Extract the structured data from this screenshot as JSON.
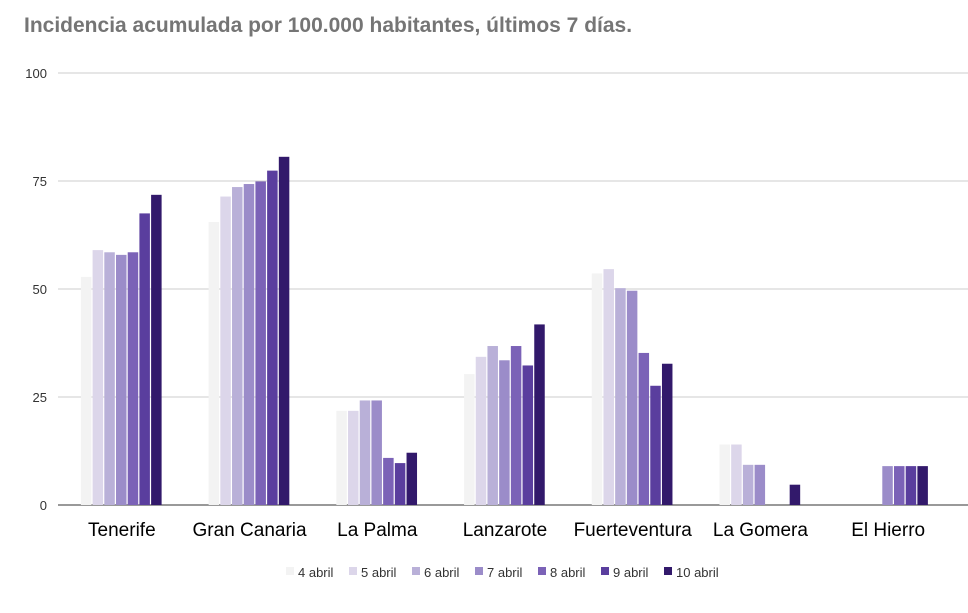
{
  "chart_data": {
    "type": "bar",
    "title": "Incidencia acumulada por 100.000 habitantes, últimos 7 días.",
    "xlabel": "",
    "ylabel": "",
    "ylim": [
      0,
      100
    ],
    "yticks": [
      0,
      25,
      50,
      75,
      100
    ],
    "grid": true,
    "legend_position": "bottom",
    "categories": [
      "Tenerife",
      "Gran Canaria",
      "La Palma",
      "Lanzarote",
      "Fuerteventura",
      "La Gomera",
      "El Hierro"
    ],
    "series": [
      {
        "name": "4 abril",
        "color": "#f3f3f3",
        "values": [
          52.8,
          65.5,
          21.8,
          30.3,
          53.6,
          14.0,
          0
        ]
      },
      {
        "name": "5 abril",
        "color": "#dcd6ea",
        "values": [
          59.0,
          71.4,
          21.8,
          34.3,
          54.6,
          14.0,
          0
        ]
      },
      {
        "name": "6 abril",
        "color": "#b9b0d8",
        "values": [
          58.5,
          73.6,
          24.2,
          36.8,
          50.2,
          9.3,
          0
        ]
      },
      {
        "name": "7 abril",
        "color": "#9b8cc9",
        "values": [
          57.9,
          74.3,
          24.2,
          33.5,
          49.6,
          9.3,
          9.0
        ]
      },
      {
        "name": "8 abril",
        "color": "#7b62b7",
        "values": [
          58.5,
          74.9,
          10.9,
          36.8,
          35.2,
          0,
          9.0
        ]
      },
      {
        "name": "9 abril",
        "color": "#5a3e9e",
        "values": [
          67.5,
          77.4,
          9.7,
          32.3,
          27.6,
          0,
          9.0
        ]
      },
      {
        "name": "10 abril",
        "color": "#32196b",
        "values": [
          71.8,
          80.6,
          12.1,
          41.8,
          32.7,
          4.7,
          9.0
        ]
      }
    ]
  }
}
